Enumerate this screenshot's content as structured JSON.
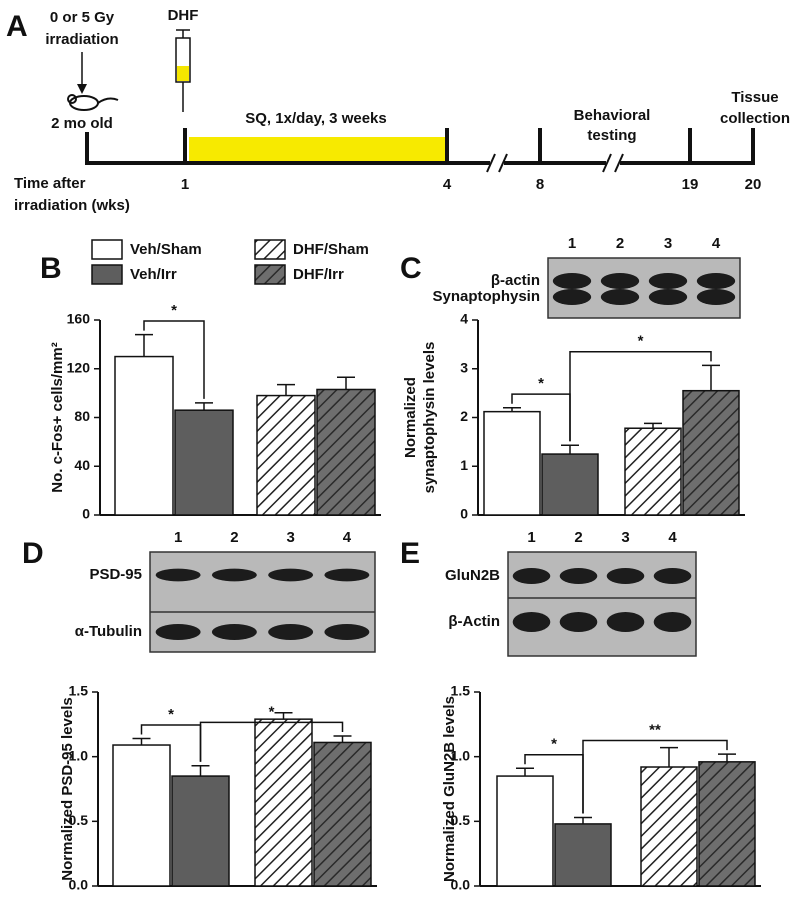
{
  "timeline": {
    "panel": "A",
    "irradiation": [
      "0 or 5 Gy",
      "irradiation"
    ],
    "age": "2 mo old",
    "drug": "DHF",
    "treatment": "SQ, 1x/day, 3 weeks",
    "behavior": [
      "Behavioral",
      "testing"
    ],
    "tissue": [
      "Tissue",
      "collection"
    ],
    "axis_label": [
      "Time after",
      "irradiation (wks)"
    ],
    "weeks": [
      1,
      4,
      8,
      19,
      20
    ]
  },
  "legend": [
    {
      "name": "Veh/Sham",
      "color": "#ffffff",
      "hatch": false
    },
    {
      "name": "Veh/Irr",
      "color": "#5e5e5e",
      "hatch": false
    },
    {
      "name": "DHF/Sham",
      "color": "#ffffff",
      "hatch": true
    },
    {
      "name": "DHF/Irr",
      "color": "#6e6e6e",
      "hatch": true
    }
  ],
  "chart_data": [
    {
      "type": "bar",
      "panel": "B",
      "ylabel": [
        "No. c-Fos+ cells/mm²"
      ],
      "values": [
        130,
        86,
        98,
        103
      ],
      "errors": [
        18,
        6,
        9,
        10
      ],
      "ylim": [
        0,
        160
      ],
      "yticks": [
        0,
        40,
        80,
        120,
        160
      ],
      "annotations": [
        {
          "bars": [
            0,
            1
          ],
          "text": "*"
        }
      ]
    },
    {
      "type": "bar",
      "panel": "C",
      "ylabel": [
        "Normalized",
        "synaptophysin levels"
      ],
      "values": [
        2.12,
        1.25,
        1.78,
        2.55
      ],
      "errors": [
        0.08,
        0.18,
        0.1,
        0.52
      ],
      "ylim": [
        0,
        4
      ],
      "yticks": [
        0,
        1,
        2,
        3,
        4
      ],
      "annotations": [
        {
          "bars": [
            0,
            1
          ],
          "text": "*"
        },
        {
          "bars": [
            1,
            3
          ],
          "text": "*"
        }
      ],
      "blot": {
        "lanes": [
          "1",
          "2",
          "3",
          "4"
        ],
        "labels": [
          "β-actin",
          "Synaptophysin"
        ]
      }
    },
    {
      "type": "bar",
      "panel": "D",
      "ylabel": [
        "Normalized PSD-95 levels"
      ],
      "values": [
        1.09,
        0.85,
        1.29,
        1.11
      ],
      "errors": [
        0.05,
        0.08,
        0.05,
        0.05
      ],
      "ylim": [
        0,
        1.5
      ],
      "yticks": [
        {
          "value": 0,
          "label": "0.0"
        },
        {
          "value": 0.5,
          "label": "0.5"
        },
        {
          "value": 1,
          "label": "1.0"
        },
        {
          "value": 1.5,
          "label": "1.5"
        }
      ],
      "annotations": [
        {
          "bars": [
            0,
            1
          ],
          "text": "*"
        },
        {
          "bars": [
            1,
            3
          ],
          "text": "*"
        }
      ],
      "blot": {
        "lanes": [
          "1",
          "2",
          "3",
          "4"
        ],
        "labels": [
          "PSD-95",
          "α-Tubulin"
        ]
      }
    },
    {
      "type": "bar",
      "panel": "E",
      "ylabel": [
        "Normalized GluN2B levels"
      ],
      "values": [
        0.85,
        0.48,
        0.92,
        0.96
      ],
      "errors": [
        0.06,
        0.05,
        0.15,
        0.06
      ],
      "ylim": [
        0,
        1.5
      ],
      "yticks": [
        {
          "value": 0,
          "label": "0.0"
        },
        {
          "value": 0.5,
          "label": "0.5"
        },
        {
          "value": 1,
          "label": "1.0"
        },
        {
          "value": 1.5,
          "label": "1.5"
        }
      ],
      "annotations": [
        {
          "bars": [
            0,
            1
          ],
          "text": "*"
        },
        {
          "bars": [
            1,
            3
          ],
          "text": "**"
        }
      ],
      "blot": {
        "lanes": [
          "1",
          "2",
          "3",
          "4"
        ],
        "labels": [
          "GluN2B",
          "β-Actin"
        ]
      }
    }
  ]
}
